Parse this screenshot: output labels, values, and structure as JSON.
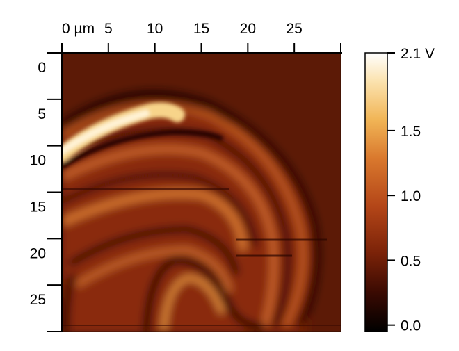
{
  "chart_data": {
    "type": "heatmap",
    "title": "",
    "x_unit_label": "µm",
    "x_ticks": [
      0,
      5,
      10,
      15,
      20,
      25
    ],
    "x_tick_labels": [
      "0 µm",
      "5",
      "10",
      "15",
      "20",
      "25"
    ],
    "y_ticks": [
      0,
      5,
      10,
      15,
      20,
      25
    ],
    "y_tick_labels": [
      "0",
      "5",
      "10",
      "15",
      "20",
      "25"
    ],
    "x_range": [
      0,
      30
    ],
    "y_range": [
      0,
      30
    ],
    "y_axis_direction": "down",
    "colorbar": {
      "range": [
        -0.05,
        2.1
      ],
      "unit": "V",
      "ticks": [
        0.0,
        0.5,
        1.0,
        1.5,
        2.1
      ],
      "tick_labels": [
        "0.0",
        "0.5",
        "1.0",
        "1.5",
        "2.1 V"
      ],
      "colormap": [
        "#000000",
        "#3a0a02",
        "#7a2208",
        "#b44618",
        "#d9782d",
        "#f1b556",
        "#fbe3b0",
        "#ffffff"
      ]
    },
    "background_value": 0.35,
    "features": [
      {
        "name": "bright-band-upper-left",
        "peak_value": 2.0
      },
      {
        "name": "concentric-arcs",
        "peak_value": 1.3
      },
      {
        "name": "dark-fringes",
        "min_value": 0.0
      }
    ]
  }
}
